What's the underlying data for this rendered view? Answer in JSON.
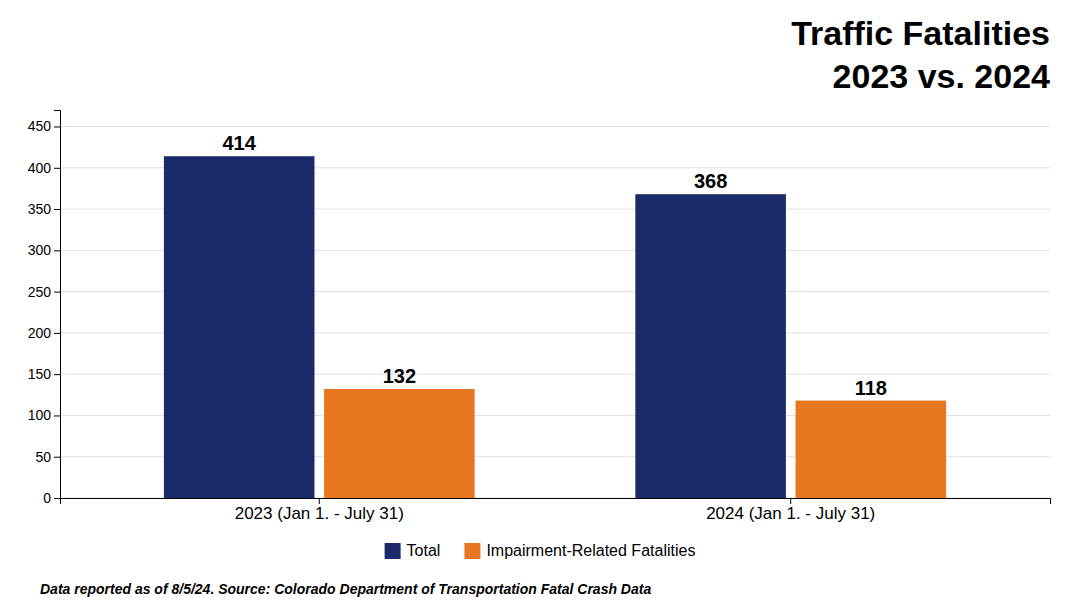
{
  "chart_data": {
    "type": "bar",
    "title": "Traffic Fatalities",
    "subtitle": "2023 vs. 2024",
    "categories": [
      "2023 (Jan 1. - July 31)",
      "2024 (Jan 1. - July 31)"
    ],
    "series": [
      {
        "name": "Total",
        "color": "#1B2A6B",
        "values": [
          414,
          368
        ]
      },
      {
        "name": "Impairment-Related Fatalities",
        "color": "#E87722",
        "values": [
          132,
          118
        ]
      }
    ],
    "ylim": [
      0,
      470
    ],
    "yticks": [
      0,
      50,
      100,
      150,
      200,
      250,
      300,
      350,
      400,
      450
    ],
    "grid": true,
    "data_labels": true,
    "legend": "bottom",
    "annotations": [
      "Data reported as of 8/5/24. Source: Colorado Department of Transportation Fatal Crash Data"
    ]
  }
}
